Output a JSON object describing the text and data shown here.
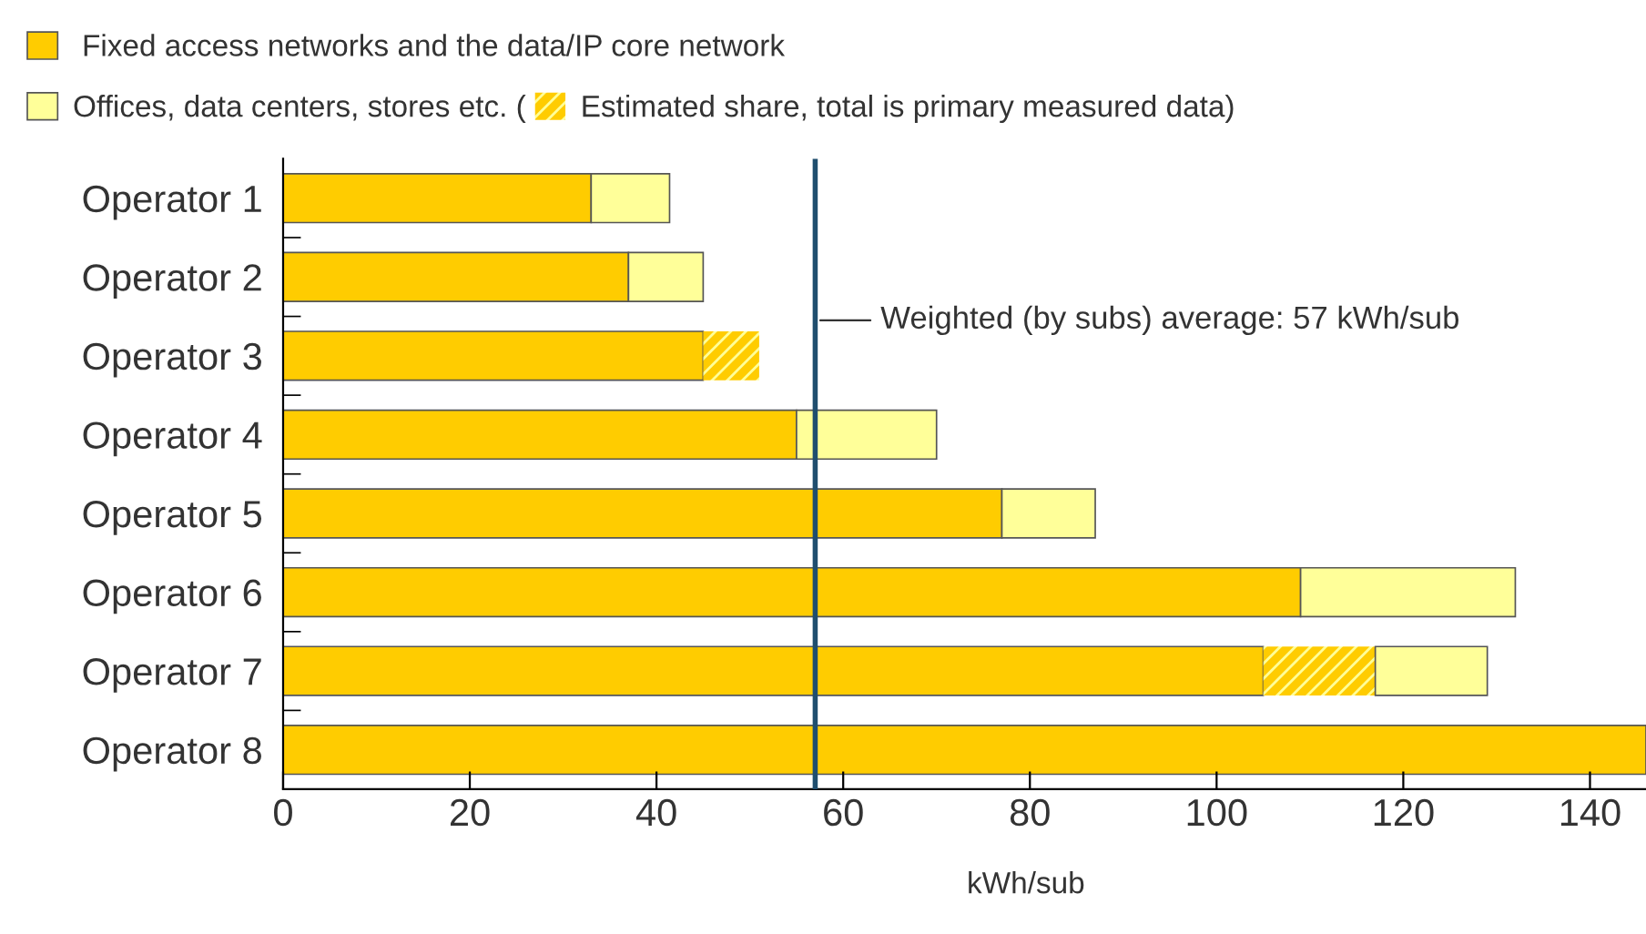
{
  "chart_data": {
    "type": "bar",
    "orientation": "horizontal",
    "stacked": true,
    "categories": [
      "Operator 1",
      "Operator 2",
      "Operator 3",
      "Operator 4",
      "Operator 5",
      "Operator 6",
      "Operator 7",
      "Operator 8"
    ],
    "series": [
      {
        "name": "Fixed access networks and the data/IP core network",
        "color": "#ffcc00",
        "values": [
          33,
          37,
          45,
          55,
          77,
          109,
          105,
          146
        ]
      },
      {
        "name": "Estimated share, total is primary measured data)",
        "color": "#ffcc00",
        "values": [
          null,
          null,
          6,
          null,
          null,
          null,
          12,
          null
        ]
      },
      {
        "name": "Offices, data centers, stores etc. (",
        "color": "#ffff99",
        "values": [
          8.4,
          8,
          null,
          15,
          10,
          23,
          12,
          null
        ]
      }
    ],
    "xlim": [
      0,
      146
    ],
    "xticks": [
      0,
      20,
      40,
      60,
      80,
      100,
      120,
      140
    ],
    "xlabel": "kWh/sub",
    "ref_lines": [
      {
        "axis": "x",
        "value": 57,
        "label": "Weighted (by subs) average: 57 kWh/sub",
        "color": "#1f4e6e"
      }
    ],
    "legend": "top left",
    "grid": false
  }
}
